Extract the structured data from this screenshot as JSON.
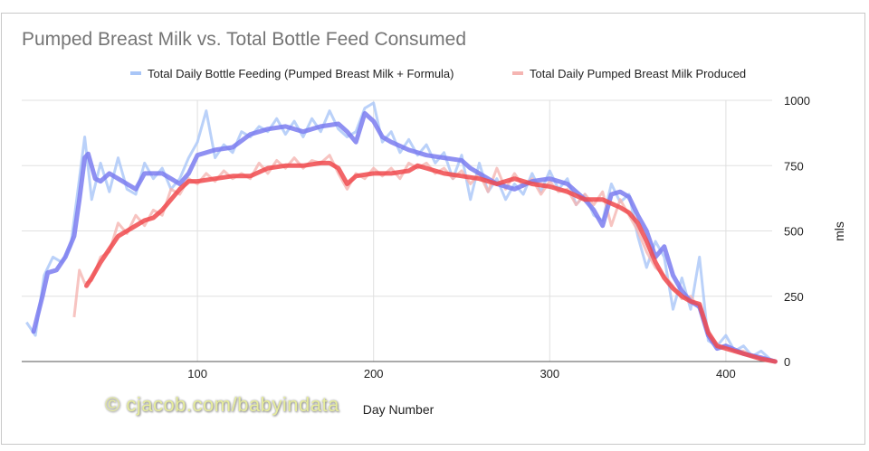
{
  "chart_data": {
    "type": "line",
    "title": "Pumped Breast Milk vs. Total Bottle Feed Consumed",
    "xlabel": "Day Number",
    "ylabel": "mls",
    "xlim": [
      1,
      428
    ],
    "ylim": [
      0,
      1000
    ],
    "x_ticks": [
      "100",
      "200",
      "300",
      "400"
    ],
    "y_ticks": [
      "0",
      "250",
      "500",
      "750",
      "1000"
    ],
    "y_axis_side": "right",
    "grid": true,
    "legend_placement": "top",
    "series": [
      {
        "name": "Total Daily Bottle Feeding (Pumped Breast Milk + Formula)",
        "color": "#a9c6f7",
        "smoothed_color": "#7b7cf0",
        "raw": [
          [
            3,
            150
          ],
          [
            8,
            100
          ],
          [
            13,
            330
          ],
          [
            18,
            400
          ],
          [
            23,
            380
          ],
          [
            28,
            440
          ],
          [
            33,
            700
          ],
          [
            36,
            860
          ],
          [
            40,
            620
          ],
          [
            45,
            760
          ],
          [
            50,
            650
          ],
          [
            55,
            780
          ],
          [
            60,
            660
          ],
          [
            65,
            640
          ],
          [
            70,
            760
          ],
          [
            75,
            700
          ],
          [
            80,
            740
          ],
          [
            85,
            660
          ],
          [
            90,
            700
          ],
          [
            95,
            780
          ],
          [
            100,
            840
          ],
          [
            105,
            960
          ],
          [
            110,
            780
          ],
          [
            115,
            830
          ],
          [
            120,
            800
          ],
          [
            125,
            880
          ],
          [
            130,
            860
          ],
          [
            135,
            900
          ],
          [
            140,
            880
          ],
          [
            145,
            930
          ],
          [
            150,
            870
          ],
          [
            155,
            920
          ],
          [
            160,
            860
          ],
          [
            165,
            930
          ],
          [
            170,
            880
          ],
          [
            175,
            960
          ],
          [
            180,
            890
          ],
          [
            185,
            860
          ],
          [
            190,
            880
          ],
          [
            195,
            970
          ],
          [
            200,
            990
          ],
          [
            205,
            840
          ],
          [
            210,
            880
          ],
          [
            215,
            800
          ],
          [
            220,
            850
          ],
          [
            225,
            790
          ],
          [
            230,
            830
          ],
          [
            235,
            760
          ],
          [
            240,
            800
          ],
          [
            245,
            700
          ],
          [
            250,
            790
          ],
          [
            255,
            620
          ],
          [
            260,
            760
          ],
          [
            265,
            650
          ],
          [
            270,
            700
          ],
          [
            275,
            620
          ],
          [
            280,
            680
          ],
          [
            285,
            640
          ],
          [
            290,
            720
          ],
          [
            295,
            650
          ],
          [
            300,
            730
          ],
          [
            305,
            660
          ],
          [
            310,
            700
          ],
          [
            315,
            600
          ],
          [
            320,
            640
          ],
          [
            325,
            560
          ],
          [
            330,
            540
          ],
          [
            335,
            680
          ],
          [
            340,
            610
          ],
          [
            345,
            640
          ],
          [
            350,
            480
          ],
          [
            355,
            360
          ],
          [
            360,
            460
          ],
          [
            365,
            400
          ],
          [
            370,
            200
          ],
          [
            375,
            320
          ],
          [
            380,
            200
          ],
          [
            385,
            400
          ],
          [
            390,
            80
          ],
          [
            395,
            60
          ],
          [
            400,
            100
          ],
          [
            405,
            40
          ],
          [
            410,
            60
          ],
          [
            415,
            20
          ],
          [
            420,
            40
          ],
          [
            425,
            10
          ],
          [
            428,
            0
          ]
        ],
        "smoothed": [
          [
            7,
            115
          ],
          [
            12,
            250
          ],
          [
            15,
            340
          ],
          [
            20,
            350
          ],
          [
            25,
            400
          ],
          [
            30,
            480
          ],
          [
            33,
            620
          ],
          [
            36,
            780
          ],
          [
            38,
            795
          ],
          [
            42,
            700
          ],
          [
            45,
            690
          ],
          [
            50,
            720
          ],
          [
            55,
            700
          ],
          [
            60,
            680
          ],
          [
            65,
            660
          ],
          [
            70,
            720
          ],
          [
            80,
            720
          ],
          [
            85,
            700
          ],
          [
            90,
            680
          ],
          [
            95,
            720
          ],
          [
            100,
            790
          ],
          [
            110,
            810
          ],
          [
            120,
            820
          ],
          [
            130,
            870
          ],
          [
            140,
            890
          ],
          [
            150,
            900
          ],
          [
            160,
            880
          ],
          [
            170,
            900
          ],
          [
            180,
            910
          ],
          [
            185,
            880
          ],
          [
            190,
            840
          ],
          [
            195,
            950
          ],
          [
            200,
            920
          ],
          [
            205,
            860
          ],
          [
            210,
            840
          ],
          [
            220,
            810
          ],
          [
            230,
            790
          ],
          [
            240,
            780
          ],
          [
            250,
            770
          ],
          [
            255,
            740
          ],
          [
            260,
            720
          ],
          [
            270,
            680
          ],
          [
            280,
            660
          ],
          [
            290,
            690
          ],
          [
            300,
            700
          ],
          [
            310,
            680
          ],
          [
            320,
            620
          ],
          [
            325,
            580
          ],
          [
            330,
            520
          ],
          [
            335,
            640
          ],
          [
            340,
            650
          ],
          [
            345,
            630
          ],
          [
            350,
            560
          ],
          [
            355,
            500
          ],
          [
            360,
            400
          ],
          [
            365,
            440
          ],
          [
            370,
            330
          ],
          [
            375,
            270
          ],
          [
            380,
            230
          ],
          [
            385,
            210
          ],
          [
            390,
            100
          ],
          [
            395,
            50
          ],
          [
            400,
            60
          ],
          [
            410,
            30
          ],
          [
            420,
            15
          ],
          [
            428,
            0
          ]
        ]
      },
      {
        "name": "Total Daily Pumped Breast Milk Produced",
        "color": "#f5b5b2",
        "smoothed_color": "#f04a4e",
        "raw": [
          [
            30,
            170
          ],
          [
            33,
            350
          ],
          [
            36,
            300
          ],
          [
            40,
            310
          ],
          [
            45,
            400
          ],
          [
            50,
            420
          ],
          [
            55,
            530
          ],
          [
            60,
            490
          ],
          [
            65,
            560
          ],
          [
            70,
            520
          ],
          [
            75,
            580
          ],
          [
            80,
            560
          ],
          [
            85,
            660
          ],
          [
            90,
            640
          ],
          [
            95,
            700
          ],
          [
            100,
            680
          ],
          [
            105,
            720
          ],
          [
            110,
            690
          ],
          [
            115,
            730
          ],
          [
            120,
            700
          ],
          [
            125,
            720
          ],
          [
            130,
            700
          ],
          [
            135,
            760
          ],
          [
            140,
            720
          ],
          [
            145,
            770
          ],
          [
            150,
            740
          ],
          [
            155,
            780
          ],
          [
            160,
            740
          ],
          [
            165,
            770
          ],
          [
            170,
            760
          ],
          [
            175,
            790
          ],
          [
            180,
            720
          ],
          [
            185,
            660
          ],
          [
            190,
            720
          ],
          [
            195,
            700
          ],
          [
            200,
            740
          ],
          [
            205,
            710
          ],
          [
            210,
            740
          ],
          [
            215,
            700
          ],
          [
            220,
            760
          ],
          [
            225,
            740
          ],
          [
            230,
            760
          ],
          [
            235,
            720
          ],
          [
            240,
            740
          ],
          [
            245,
            700
          ],
          [
            250,
            730
          ],
          [
            255,
            680
          ],
          [
            260,
            720
          ],
          [
            265,
            650
          ],
          [
            270,
            740
          ],
          [
            275,
            660
          ],
          [
            280,
            720
          ],
          [
            285,
            670
          ],
          [
            290,
            700
          ],
          [
            295,
            640
          ],
          [
            300,
            690
          ],
          [
            305,
            650
          ],
          [
            310,
            660
          ],
          [
            315,
            600
          ],
          [
            320,
            640
          ],
          [
            325,
            600
          ],
          [
            330,
            650
          ],
          [
            335,
            520
          ],
          [
            340,
            620
          ],
          [
            345,
            560
          ],
          [
            350,
            500
          ],
          [
            355,
            420
          ],
          [
            360,
            360
          ],
          [
            365,
            330
          ],
          [
            370,
            290
          ],
          [
            375,
            240
          ],
          [
            380,
            250
          ],
          [
            385,
            200
          ],
          [
            390,
            120
          ],
          [
            395,
            60
          ],
          [
            400,
            60
          ],
          [
            405,
            40
          ],
          [
            410,
            40
          ],
          [
            415,
            20
          ],
          [
            420,
            10
          ],
          [
            425,
            5
          ],
          [
            428,
            0
          ]
        ],
        "smoothed": [
          [
            37,
            290
          ],
          [
            40,
            320
          ],
          [
            45,
            380
          ],
          [
            50,
            430
          ],
          [
            55,
            480
          ],
          [
            60,
            500
          ],
          [
            65,
            520
          ],
          [
            70,
            540
          ],
          [
            75,
            550
          ],
          [
            80,
            580
          ],
          [
            85,
            620
          ],
          [
            90,
            660
          ],
          [
            95,
            690
          ],
          [
            100,
            690
          ],
          [
            110,
            700
          ],
          [
            120,
            710
          ],
          [
            130,
            710
          ],
          [
            140,
            740
          ],
          [
            150,
            750
          ],
          [
            160,
            750
          ],
          [
            170,
            760
          ],
          [
            175,
            760
          ],
          [
            180,
            740
          ],
          [
            185,
            680
          ],
          [
            190,
            710
          ],
          [
            200,
            720
          ],
          [
            210,
            720
          ],
          [
            220,
            730
          ],
          [
            225,
            750
          ],
          [
            230,
            740
          ],
          [
            240,
            720
          ],
          [
            250,
            710
          ],
          [
            260,
            700
          ],
          [
            270,
            680
          ],
          [
            280,
            700
          ],
          [
            290,
            680
          ],
          [
            300,
            670
          ],
          [
            310,
            650
          ],
          [
            320,
            620
          ],
          [
            330,
            620
          ],
          [
            340,
            590
          ],
          [
            345,
            570
          ],
          [
            350,
            530
          ],
          [
            355,
            460
          ],
          [
            360,
            380
          ],
          [
            365,
            320
          ],
          [
            370,
            280
          ],
          [
            375,
            250
          ],
          [
            380,
            230
          ],
          [
            385,
            220
          ],
          [
            390,
            110
          ],
          [
            395,
            60
          ],
          [
            400,
            50
          ],
          [
            410,
            30
          ],
          [
            420,
            10
          ],
          [
            428,
            0
          ]
        ]
      }
    ]
  },
  "watermark": "©  cjacob.com/babyindata"
}
